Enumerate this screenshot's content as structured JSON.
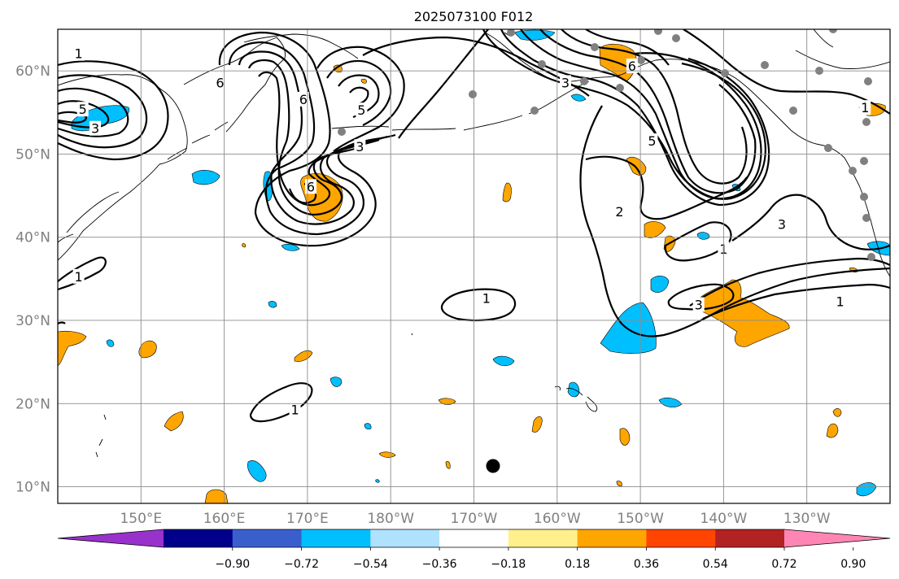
{
  "title": "2025073100 F012",
  "map": {
    "lat_range": [
      8,
      65
    ],
    "lon_range_east": [
      140,
      240
    ],
    "grid_lats": [
      10,
      20,
      30,
      40,
      50,
      60
    ],
    "grid_lons": [
      150,
      160,
      170,
      180,
      190,
      200,
      210,
      220,
      230
    ],
    "lat_labels": [
      "10°N",
      "20°N",
      "30°N",
      "40°N",
      "50°N",
      "60°N"
    ],
    "lon_labels": [
      "150°E",
      "160°E",
      "170°E",
      "180°W",
      "170°W",
      "160°W",
      "150°W",
      "140°W",
      "130°W"
    ]
  },
  "contour_labels": [
    {
      "text": "1",
      "lon": 142.5,
      "lat": 62.0
    },
    {
      "text": "5",
      "lon": 143.0,
      "lat": 55.3
    },
    {
      "text": "3",
      "lon": 144.5,
      "lat": 53.0
    },
    {
      "text": "6",
      "lon": 159.5,
      "lat": 58.5
    },
    {
      "text": "6",
      "lon": 169.5,
      "lat": 56.5
    },
    {
      "text": "5",
      "lon": 176.5,
      "lat": 55.2
    },
    {
      "text": "3",
      "lon": 176.3,
      "lat": 50.8
    },
    {
      "text": "6",
      "lon": 170.4,
      "lat": 46.0
    },
    {
      "text": "3",
      "lon": 201.0,
      "lat": 58.5
    },
    {
      "text": "6",
      "lon": 209.0,
      "lat": 60.5
    },
    {
      "text": "5",
      "lon": 211.4,
      "lat": 51.5
    },
    {
      "text": "2",
      "lon": 207.5,
      "lat": 43.0
    },
    {
      "text": "3",
      "lon": 227.0,
      "lat": 41.5
    },
    {
      "text": "1",
      "lon": 237.0,
      "lat": 55.5
    },
    {
      "text": "1",
      "lon": 220.0,
      "lat": 38.5
    },
    {
      "text": "3",
      "lon": 217.0,
      "lat": 31.8
    },
    {
      "text": "1",
      "lon": 234.0,
      "lat": 32.2
    },
    {
      "text": "1",
      "lon": 142.5,
      "lat": 35.2
    },
    {
      "text": "1",
      "lon": 191.5,
      "lat": 32.6
    },
    {
      "text": "1",
      "lon": 168.5,
      "lat": 19.2
    }
  ],
  "colorbar": {
    "ticks": [
      "−0.90",
      "−0.72",
      "−0.54",
      "−0.36",
      "−0.18",
      "0.18",
      "0.36",
      "0.54",
      "0.72",
      "0.90"
    ],
    "colors": [
      "#9932cc",
      "#00008b",
      "#3a5fcd",
      "#00bfff",
      "#b0e2ff",
      "#ffffff",
      "#fff08c",
      "#ffa500",
      "#ff4500",
      "#b22222",
      "#ff86b4"
    ]
  },
  "colors": {
    "negative_fill": "#00bfff",
    "positive_fill": "#ffa500",
    "station_marker": "#808080",
    "storm_marker": "#000000"
  }
}
